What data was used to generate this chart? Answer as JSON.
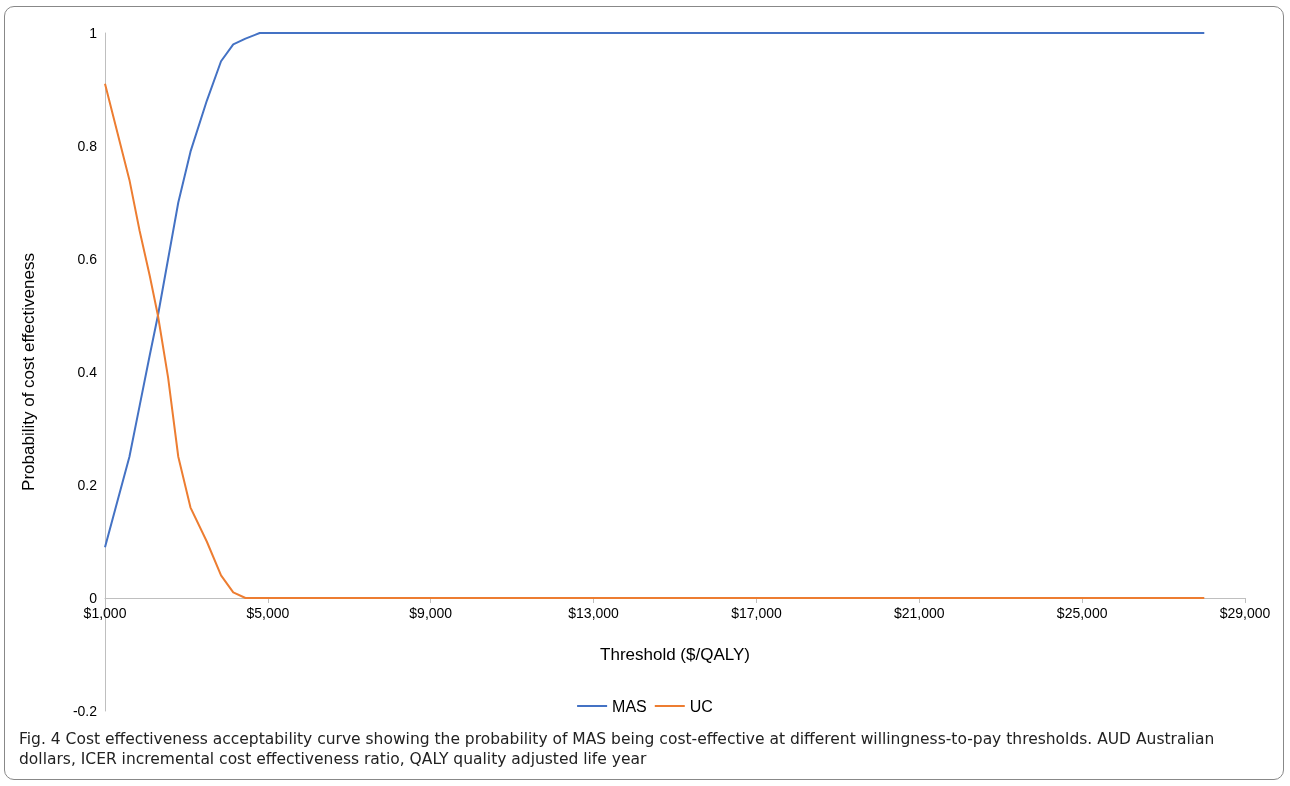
{
  "chart_data": {
    "type": "line",
    "xlabel": "Threshold ($/QALY)",
    "ylabel": "Probability of cost effectiveness",
    "series": [
      {
        "name": "MAS",
        "color": "#4472c4",
        "x": [
          1000,
          1600,
          1850,
          2100,
          2300,
          2550,
          2800,
          3100,
          3500,
          3850,
          4150,
          4450,
          4800,
          5100,
          5400,
          28000
        ],
        "values": [
          0.09,
          0.25,
          0.34,
          0.43,
          0.5,
          0.6,
          0.7,
          0.79,
          0.88,
          0.95,
          0.98,
          0.99,
          1,
          1,
          1,
          1
        ]
      },
      {
        "name": "UC",
        "color": "#ed7d31",
        "x": [
          1000,
          1600,
          1850,
          2100,
          2300,
          2550,
          2800,
          3100,
          3500,
          3850,
          4150,
          4450,
          4800,
          5100,
          5400,
          5950,
          7100,
          28000
        ],
        "values": [
          0.91,
          0.74,
          0.65,
          0.57,
          0.5,
          0.39,
          0.25,
          0.16,
          0.1,
          0.04,
          0.01,
          0,
          0,
          0,
          0,
          0,
          0,
          0
        ]
      }
    ],
    "xlim": [
      1000,
      29000
    ],
    "xticks": [
      {
        "value": 1000,
        "label": "$1,000"
      },
      {
        "value": 5000,
        "label": "$5,000"
      },
      {
        "value": 9000,
        "label": "$9,000"
      },
      {
        "value": 13000,
        "label": "$13,000"
      },
      {
        "value": 17000,
        "label": "$17,000"
      },
      {
        "value": 21000,
        "label": "$21,000"
      },
      {
        "value": 25000,
        "label": "$25,000"
      },
      {
        "value": 29000,
        "label": "$29,000"
      }
    ],
    "ylim": [
      -0.2,
      1
    ],
    "yticks": [
      -0.2,
      0,
      0.2,
      0.4,
      0.6,
      0.8,
      1
    ],
    "grid": false,
    "legend": "bottom",
    "marker": "none",
    "line_style": "solid",
    "annotations": [
      "Fig. 4  Cost effectiveness acceptability curve showing the probability of MAS being cost-effective at different willingness-to-pay thresholds. AUD Australian dollars, ICER incremental cost effectiveness ratio, QALY quality adjusted life year"
    ]
  }
}
